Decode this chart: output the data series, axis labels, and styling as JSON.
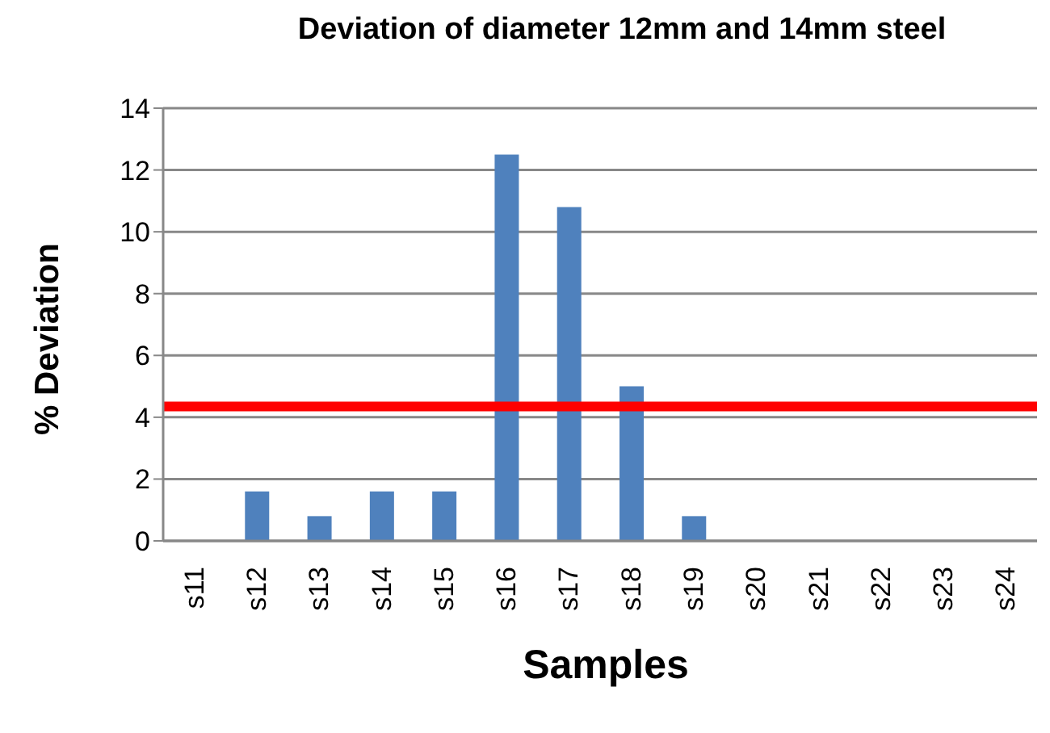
{
  "chart_data": {
    "type": "bar",
    "title": "Deviation of diameter 12mm and 14mm steel",
    "xlabel": "Samples",
    "ylabel": "% Deviation",
    "categories": [
      "s11",
      "s12",
      "s13",
      "s14",
      "s15",
      "s16",
      "s17",
      "s18",
      "s19",
      "s20",
      "s21",
      "s22",
      "s23",
      "s24"
    ],
    "values": [
      0,
      1.6,
      0.8,
      1.6,
      1.6,
      12.5,
      10.8,
      5.0,
      0.8,
      0,
      0,
      0,
      0,
      0
    ],
    "color": "#4f81bd",
    "ylim": [
      0,
      14
    ],
    "yticks": [
      0,
      2,
      4,
      6,
      8,
      10,
      12,
      14
    ],
    "grid": "y",
    "ref_lines": [
      {
        "axis": "y",
        "value": 4.35,
        "color": "#ff0000"
      }
    ]
  }
}
